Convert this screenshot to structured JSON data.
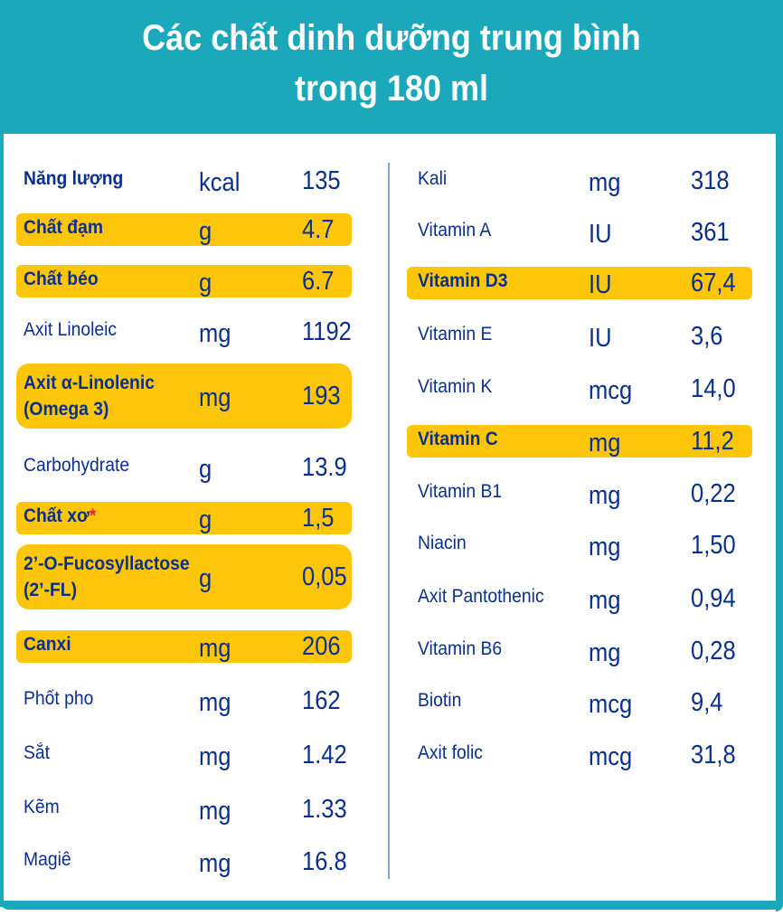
{
  "title": {
    "line1": "Các chất dinh dưỡng trung bình",
    "line2": "trong 180 ml"
  },
  "colors": {
    "header": "#1ba8ba",
    "highlight": "#fec60a",
    "text": "#0a2f8c",
    "asterisk": "#e3262a"
  },
  "left": [
    {
      "name": "Năng lượng",
      "unit": "kcal",
      "value": "135",
      "highlight": false,
      "bold": true
    },
    {
      "name": "Chất đạm",
      "unit": "g",
      "value": "4.7",
      "highlight": true,
      "bold": true
    },
    {
      "name": "Chất béo",
      "unit": "g",
      "value": "6.7",
      "highlight": true,
      "bold": true
    },
    {
      "name": "Axit Linoleic",
      "unit": "mg",
      "value": "1192",
      "highlight": false,
      "bold": false
    },
    {
      "name": "Axit α-Linolenic",
      "name2": "(Omega 3)",
      "unit": "mg",
      "value": "193",
      "highlight": true,
      "bold": true
    },
    {
      "name": "Carbohydrate",
      "unit": "g",
      "value": "13.9",
      "highlight": false,
      "bold": false
    },
    {
      "name": "Chất xơ",
      "asterisk": "*",
      "unit": "g",
      "value": "1,5",
      "highlight": true,
      "bold": true
    },
    {
      "name": "2’-O-Fucosyllactose",
      "name2": "(2’-FL)",
      "unit": "g",
      "value": "0,05",
      "highlight": true,
      "bold": true
    },
    {
      "name": "Canxi",
      "unit": "mg",
      "value": "206",
      "highlight": true,
      "bold": true
    },
    {
      "name": "Phốt pho",
      "unit": "mg",
      "value": "162",
      "highlight": false,
      "bold": false
    },
    {
      "name": "Sắt",
      "unit": "mg",
      "value": "1.42",
      "highlight": false,
      "bold": false
    },
    {
      "name": "Kẽm",
      "unit": "mg",
      "value": "1.33",
      "highlight": false,
      "bold": false
    },
    {
      "name": "Magiê",
      "unit": "mg",
      "value": "16.8",
      "highlight": false,
      "bold": false
    }
  ],
  "right": [
    {
      "name": "Kali",
      "unit": "mg",
      "value": "318",
      "highlight": false,
      "bold": false
    },
    {
      "name": "Vitamin A",
      "unit": "IU",
      "value": "361",
      "highlight": false,
      "bold": false
    },
    {
      "name": "Vitamin D3",
      "unit": "IU",
      "value": "67,4",
      "highlight": true,
      "bold": true
    },
    {
      "name": "Vitamin E",
      "unit": "IU",
      "value": "3,6",
      "highlight": false,
      "bold": false
    },
    {
      "name": "Vitamin K",
      "unit": "mcg",
      "value": "14,0",
      "highlight": false,
      "bold": false
    },
    {
      "name": "Vitamin C",
      "unit": "mg",
      "value": "11,2",
      "highlight": true,
      "bold": true
    },
    {
      "name": "Vitamin B1",
      "unit": "mg",
      "value": "0,22",
      "highlight": false,
      "bold": false
    },
    {
      "name": "Niacin",
      "unit": "mg",
      "value": "1,50",
      "highlight": false,
      "bold": false
    },
    {
      "name": "Axit Pantothenic",
      "unit": "mg",
      "value": "0,94",
      "highlight": false,
      "bold": false
    },
    {
      "name": "Vitamin B6",
      "unit": "mg",
      "value": "0,28",
      "highlight": false,
      "bold": false
    },
    {
      "name": "Biotin",
      "unit": "mcg",
      "value": "9,4",
      "highlight": false,
      "bold": false
    },
    {
      "name": "Axit folic",
      "unit": "mcg",
      "value": "31,8",
      "highlight": false,
      "bold": false
    }
  ]
}
